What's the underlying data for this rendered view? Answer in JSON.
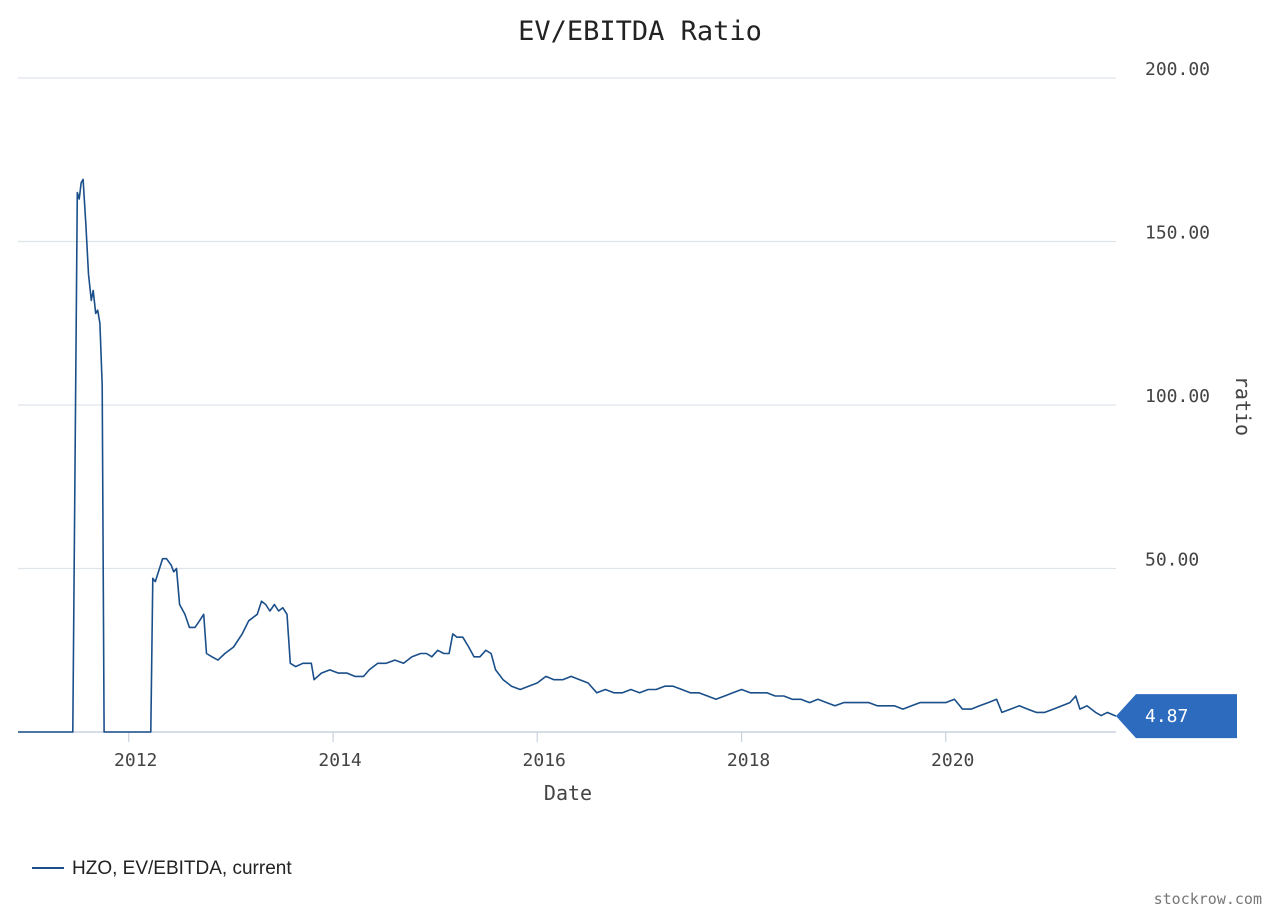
{
  "chart_data": {
    "type": "line",
    "title": "EV/EBITDA Ratio",
    "xlabel": "Date",
    "ylabel": "ratio",
    "x_range": [
      "2010-12-01",
      "2021-09-01"
    ],
    "ylim": [
      0,
      200
    ],
    "y_ticks": [
      50,
      100,
      150,
      200
    ],
    "y_tick_labels": [
      "50.00",
      "100.00",
      "150.00",
      "200.00"
    ],
    "x_ticks": [
      "2012",
      "2014",
      "2016",
      "2018",
      "2020"
    ],
    "y_axis_side": "right",
    "grid": "horizontal",
    "legend_position": "bottom-left",
    "line_color": "#1a4f8a",
    "last_value_color": "#2d6bbf",
    "last_value_label": "4.87",
    "series": [
      {
        "name": "HZO, EV/EBITDA, current",
        "points": [
          [
            "2010-12-01",
            0
          ],
          [
            "2011-06-15",
            0
          ],
          [
            "2011-07-01",
            165
          ],
          [
            "2011-07-08",
            163
          ],
          [
            "2011-07-15",
            168
          ],
          [
            "2011-07-22",
            169
          ],
          [
            "2011-08-01",
            155
          ],
          [
            "2011-08-10",
            140
          ],
          [
            "2011-08-20",
            132
          ],
          [
            "2011-08-27",
            135
          ],
          [
            "2011-09-05",
            128
          ],
          [
            "2011-09-12",
            129
          ],
          [
            "2011-09-20",
            125
          ],
          [
            "2011-09-28",
            106
          ],
          [
            "2011-10-05",
            0
          ],
          [
            "2012-03-20",
            0
          ],
          [
            "2012-03-27",
            47
          ],
          [
            "2012-04-05",
            46
          ],
          [
            "2012-04-20",
            50
          ],
          [
            "2012-05-01",
            53
          ],
          [
            "2012-05-15",
            53
          ],
          [
            "2012-06-01",
            51
          ],
          [
            "2012-06-10",
            49
          ],
          [
            "2012-06-20",
            50
          ],
          [
            "2012-07-01",
            39
          ],
          [
            "2012-07-20",
            36
          ],
          [
            "2012-08-05",
            32
          ],
          [
            "2012-08-25",
            32
          ],
          [
            "2012-09-10",
            34
          ],
          [
            "2012-09-25",
            36
          ],
          [
            "2012-10-05",
            24
          ],
          [
            "2012-10-25",
            23
          ],
          [
            "2012-11-15",
            22
          ],
          [
            "2012-12-10",
            24
          ],
          [
            "2013-01-10",
            26
          ],
          [
            "2013-02-10",
            30
          ],
          [
            "2013-03-05",
            34
          ],
          [
            "2013-04-05",
            36
          ],
          [
            "2013-04-20",
            40
          ],
          [
            "2013-05-05",
            39
          ],
          [
            "2013-05-20",
            37
          ],
          [
            "2013-06-05",
            39
          ],
          [
            "2013-06-20",
            37
          ],
          [
            "2013-07-05",
            38
          ],
          [
            "2013-07-20",
            36
          ],
          [
            "2013-08-01",
            21
          ],
          [
            "2013-08-20",
            20
          ],
          [
            "2013-09-15",
            21
          ],
          [
            "2013-10-15",
            21
          ],
          [
            "2013-10-25",
            16
          ],
          [
            "2013-11-20",
            18
          ],
          [
            "2013-12-20",
            19
          ],
          [
            "2014-01-20",
            18
          ],
          [
            "2014-02-20",
            18
          ],
          [
            "2014-03-20",
            17
          ],
          [
            "2014-04-20",
            17
          ],
          [
            "2014-05-10",
            19
          ],
          [
            "2014-06-10",
            21
          ],
          [
            "2014-07-10",
            21
          ],
          [
            "2014-08-10",
            22
          ],
          [
            "2014-09-10",
            21
          ],
          [
            "2014-10-10",
            23
          ],
          [
            "2014-11-10",
            24
          ],
          [
            "2014-12-01",
            24
          ],
          [
            "2014-12-20",
            23
          ],
          [
            "2015-01-10",
            25
          ],
          [
            "2015-02-01",
            24
          ],
          [
            "2015-02-20",
            24
          ],
          [
            "2015-03-05",
            30
          ],
          [
            "2015-03-20",
            29
          ],
          [
            "2015-04-10",
            29
          ],
          [
            "2015-05-01",
            26
          ],
          [
            "2015-05-20",
            23
          ],
          [
            "2015-06-10",
            23
          ],
          [
            "2015-07-01",
            25
          ],
          [
            "2015-07-20",
            24
          ],
          [
            "2015-08-05",
            19
          ],
          [
            "2015-09-01",
            16
          ],
          [
            "2015-10-01",
            14
          ],
          [
            "2015-11-01",
            13
          ],
          [
            "2015-12-01",
            14
          ],
          [
            "2016-01-01",
            15
          ],
          [
            "2016-02-01",
            17
          ],
          [
            "2016-03-01",
            16
          ],
          [
            "2016-04-01",
            16
          ],
          [
            "2016-05-01",
            17
          ],
          [
            "2016-06-01",
            16
          ],
          [
            "2016-07-01",
            15
          ],
          [
            "2016-08-01",
            12
          ],
          [
            "2016-09-01",
            13
          ],
          [
            "2016-10-01",
            12
          ],
          [
            "2016-11-01",
            12
          ],
          [
            "2016-12-01",
            13
          ],
          [
            "2017-01-01",
            12
          ],
          [
            "2017-02-01",
            13
          ],
          [
            "2017-03-01",
            13
          ],
          [
            "2017-04-01",
            14
          ],
          [
            "2017-05-01",
            14
          ],
          [
            "2017-06-01",
            13
          ],
          [
            "2017-07-01",
            12
          ],
          [
            "2017-08-01",
            12
          ],
          [
            "2017-09-01",
            11
          ],
          [
            "2017-10-01",
            10
          ],
          [
            "2017-11-01",
            11
          ],
          [
            "2017-12-01",
            12
          ],
          [
            "2018-01-01",
            13
          ],
          [
            "2018-02-01",
            12
          ],
          [
            "2018-03-01",
            12
          ],
          [
            "2018-04-01",
            12
          ],
          [
            "2018-05-01",
            11
          ],
          [
            "2018-06-01",
            11
          ],
          [
            "2018-07-01",
            10
          ],
          [
            "2018-08-01",
            10
          ],
          [
            "2018-09-01",
            9
          ],
          [
            "2018-10-01",
            10
          ],
          [
            "2018-11-01",
            9
          ],
          [
            "2018-12-01",
            8
          ],
          [
            "2019-01-01",
            9
          ],
          [
            "2019-02-01",
            9
          ],
          [
            "2019-03-01",
            9
          ],
          [
            "2019-04-01",
            9
          ],
          [
            "2019-05-01",
            8
          ],
          [
            "2019-06-01",
            8
          ],
          [
            "2019-07-01",
            8
          ],
          [
            "2019-08-01",
            7
          ],
          [
            "2019-09-01",
            8
          ],
          [
            "2019-10-01",
            9
          ],
          [
            "2019-11-01",
            9
          ],
          [
            "2019-12-01",
            9
          ],
          [
            "2020-01-01",
            9
          ],
          [
            "2020-02-01",
            10
          ],
          [
            "2020-03-01",
            7
          ],
          [
            "2020-04-01",
            7
          ],
          [
            "2020-05-01",
            8
          ],
          [
            "2020-06-01",
            9
          ],
          [
            "2020-07-01",
            10
          ],
          [
            "2020-07-20",
            6
          ],
          [
            "2020-08-20",
            7
          ],
          [
            "2020-09-20",
            8
          ],
          [
            "2020-10-20",
            7
          ],
          [
            "2020-11-20",
            6
          ],
          [
            "2020-12-20",
            6
          ],
          [
            "2021-01-20",
            7
          ],
          [
            "2021-02-20",
            8
          ],
          [
            "2021-03-20",
            9
          ],
          [
            "2021-04-10",
            11
          ],
          [
            "2021-04-25",
            7
          ],
          [
            "2021-05-20",
            8
          ],
          [
            "2021-06-20",
            6
          ],
          [
            "2021-07-10",
            5
          ],
          [
            "2021-08-01",
            6
          ],
          [
            "2021-09-01",
            4.87
          ]
        ]
      }
    ]
  },
  "legend": {
    "label": "HZO, EV/EBITDA, current"
  },
  "watermark": "stockrow.com"
}
